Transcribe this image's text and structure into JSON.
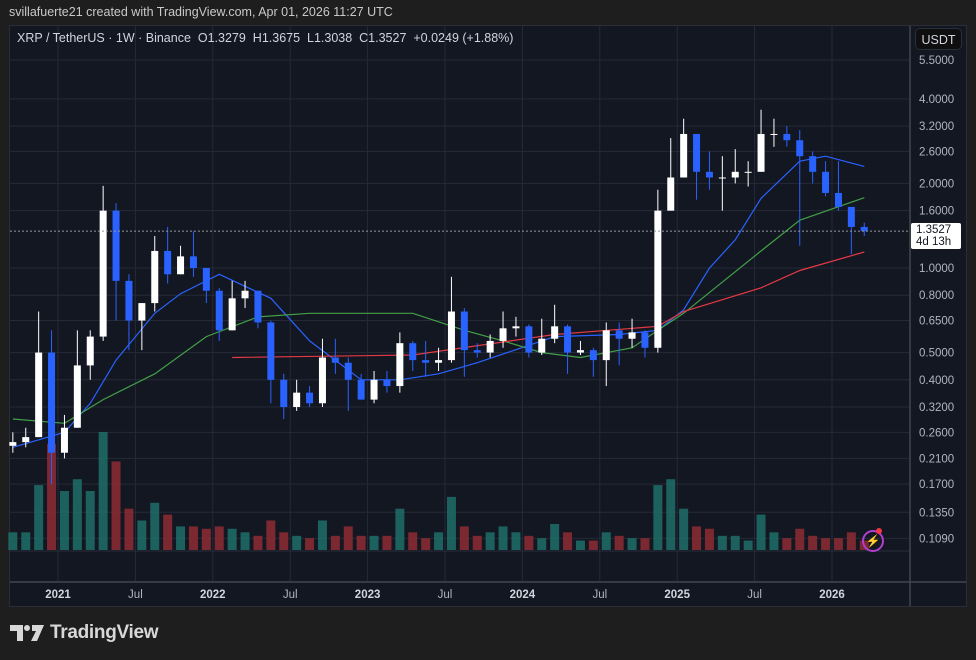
{
  "credit": "svillafuerte21 created with TradingView.com, Apr 01, 2026 11:27 UTC",
  "legend": {
    "symbol": "XRP / TetherUS · 1W · Binance",
    "open": "O1.3279",
    "high": "H1.3675",
    "low": "L1.3038",
    "close": "C1.3527",
    "change": "+0.0249 (+1.88%)"
  },
  "currency_button": "USDT",
  "last_price": {
    "value": "1.3527",
    "countdown": "4d 13h"
  },
  "brand": "TradingView",
  "colors": {
    "background": "#131722",
    "up_candle": "#ffffff",
    "down_candle": "#2962ff",
    "ma_blue": "#2962ff",
    "ma_green": "#43a047",
    "ma_red": "#e53945",
    "volume_up": "#1f6f68",
    "volume_down": "#8e2b33"
  },
  "chart_data": {
    "type": "candlestick",
    "scale": "log",
    "grid": true,
    "ylim": [
      0.1,
      6
    ],
    "y_ticks": [
      "5.5000",
      "4.0000",
      "3.2000",
      "2.6000",
      "2.0000",
      "1.6000",
      "1.0000",
      "0.8000",
      "0.6500",
      "0.5000",
      "0.4000",
      "0.3200",
      "0.2600",
      "0.2100",
      "0.1700",
      "0.1350",
      "0.1090"
    ],
    "x_ticks": [
      {
        "label": "2021",
        "t": "2021-01",
        "major": true
      },
      {
        "label": "Jul",
        "t": "2021-07",
        "major": false
      },
      {
        "label": "2022",
        "t": "2022-01",
        "major": true
      },
      {
        "label": "Jul",
        "t": "2022-07",
        "major": false
      },
      {
        "label": "2023",
        "t": "2023-01",
        "major": true
      },
      {
        "label": "Jul",
        "t": "2023-07",
        "major": false
      },
      {
        "label": "2024",
        "t": "2024-01",
        "major": true
      },
      {
        "label": "Jul",
        "t": "2024-07",
        "major": false
      },
      {
        "label": "2025",
        "t": "2025-01",
        "major": true
      },
      {
        "label": "Jul",
        "t": "2025-07",
        "major": false
      },
      {
        "label": "2026",
        "t": "2026-01",
        "major": true
      }
    ],
    "start_month": "2020-09",
    "closes": [
      0.24,
      0.25,
      0.5,
      0.22,
      0.27,
      0.45,
      0.57,
      1.6,
      0.9,
      0.65,
      0.75,
      1.15,
      0.95,
      1.1,
      1.0,
      0.83,
      0.6,
      0.78,
      0.83,
      0.64,
      0.4,
      0.32,
      0.36,
      0.33,
      0.48,
      0.46,
      0.4,
      0.34,
      0.4,
      0.38,
      0.54,
      0.47,
      0.46,
      0.47,
      0.7,
      0.51,
      0.5,
      0.55,
      0.61,
      0.62,
      0.5,
      0.56,
      0.62,
      0.5,
      0.51,
      0.47,
      0.6,
      0.56,
      0.59,
      0.52,
      1.6,
      2.1,
      3.0,
      2.2,
      2.1,
      2.1,
      2.2,
      2.2,
      3.0,
      3.0,
      2.85,
      2.5,
      2.2,
      1.85,
      1.65,
      1.4,
      1.3527
    ],
    "highs": [
      0.26,
      0.27,
      0.7,
      0.6,
      0.3,
      0.6,
      0.6,
      1.96,
      1.7,
      0.95,
      0.75,
      1.3,
      1.4,
      1.2,
      1.35,
      1.0,
      0.85,
      0.9,
      0.9,
      0.83,
      0.65,
      0.42,
      0.4,
      0.38,
      0.56,
      0.56,
      0.48,
      0.42,
      0.43,
      0.43,
      0.59,
      0.55,
      0.55,
      0.52,
      0.93,
      0.72,
      0.54,
      0.58,
      0.7,
      0.67,
      0.63,
      0.66,
      0.74,
      0.63,
      0.55,
      0.52,
      0.64,
      0.64,
      0.66,
      0.6,
      1.9,
      2.9,
      3.4,
      3.0,
      2.6,
      2.5,
      2.65,
      2.4,
      3.66,
      3.4,
      3.2,
      3.1,
      2.6,
      2.4,
      2.4,
      1.6,
      1.45
    ],
    "lows": [
      0.22,
      0.23,
      0.25,
      0.17,
      0.21,
      0.27,
      0.4,
      0.55,
      0.65,
      0.51,
      0.51,
      0.7,
      0.88,
      0.95,
      0.93,
      0.75,
      0.55,
      0.6,
      0.72,
      0.61,
      0.33,
      0.29,
      0.31,
      0.32,
      0.32,
      0.42,
      0.31,
      0.34,
      0.33,
      0.36,
      0.36,
      0.43,
      0.41,
      0.43,
      0.46,
      0.41,
      0.48,
      0.48,
      0.52,
      0.57,
      0.48,
      0.49,
      0.54,
      0.42,
      0.49,
      0.41,
      0.38,
      0.45,
      0.52,
      0.48,
      0.5,
      1.6,
      2.1,
      1.75,
      1.9,
      1.6,
      2.0,
      1.95,
      2.2,
      2.7,
      2.7,
      1.2,
      2.0,
      1.8,
      1.6,
      1.12,
      1.3
    ],
    "volume_relative": [
      15,
      15,
      55,
      90,
      50,
      60,
      50,
      100,
      75,
      35,
      25,
      40,
      30,
      20,
      20,
      18,
      20,
      18,
      15,
      12,
      25,
      15,
      12,
      10,
      25,
      12,
      20,
      12,
      12,
      12,
      35,
      15,
      10,
      15,
      45,
      20,
      12,
      15,
      20,
      15,
      12,
      10,
      22,
      15,
      8,
      8,
      15,
      12,
      10,
      10,
      55,
      60,
      35,
      20,
      18,
      12,
      12,
      8,
      30,
      15,
      10,
      18,
      12,
      10,
      10,
      15,
      8
    ],
    "moving_averages": [
      {
        "color": "blue",
        "points": [
          [
            "2020-09",
            0.23
          ],
          [
            "2021-01",
            0.26
          ],
          [
            "2021-03",
            0.33
          ],
          [
            "2021-05",
            0.47
          ],
          [
            "2021-08",
            0.69
          ],
          [
            "2021-10",
            0.81
          ],
          [
            "2022-01",
            0.95
          ],
          [
            "2022-05",
            0.78
          ],
          [
            "2022-08",
            0.55
          ],
          [
            "2022-12",
            0.4
          ],
          [
            "2023-03",
            0.4
          ],
          [
            "2023-06",
            0.42
          ],
          [
            "2023-09",
            0.46
          ],
          [
            "2024-03",
            0.57
          ],
          [
            "2024-08",
            0.58
          ],
          [
            "2024-11",
            0.6
          ],
          [
            "2025-01",
            0.71
          ],
          [
            "2025-03",
            1.0
          ],
          [
            "2025-05",
            1.26
          ],
          [
            "2025-07",
            1.77
          ],
          [
            "2025-10",
            2.4
          ],
          [
            "2025-12",
            2.5
          ],
          [
            "2026-03",
            2.3
          ]
        ]
      },
      {
        "color": "green",
        "points": [
          [
            "2020-09",
            0.29
          ],
          [
            "2021-01",
            0.28
          ],
          [
            "2021-04",
            0.34
          ],
          [
            "2021-08",
            0.42
          ],
          [
            "2021-12",
            0.57
          ],
          [
            "2022-04",
            0.67
          ],
          [
            "2022-08",
            0.69
          ],
          [
            "2023-04",
            0.69
          ],
          [
            "2023-08",
            0.6
          ],
          [
            "2023-11",
            0.55
          ],
          [
            "2024-02",
            0.5
          ],
          [
            "2024-05",
            0.48
          ],
          [
            "2024-09",
            0.52
          ],
          [
            "2024-11",
            0.6
          ],
          [
            "2025-01",
            0.69
          ],
          [
            "2025-07",
            1.15
          ],
          [
            "2025-10",
            1.48
          ],
          [
            "2026-03",
            1.78
          ]
        ]
      },
      {
        "color": "red",
        "points": [
          [
            "2022-02",
            0.48
          ],
          [
            "2023-04",
            0.49
          ],
          [
            "2024-03",
            0.58
          ],
          [
            "2024-11",
            0.62
          ],
          [
            "2025-01",
            0.7
          ],
          [
            "2025-07",
            0.85
          ],
          [
            "2025-10",
            0.98
          ],
          [
            "2026-03",
            1.14
          ]
        ]
      }
    ]
  }
}
